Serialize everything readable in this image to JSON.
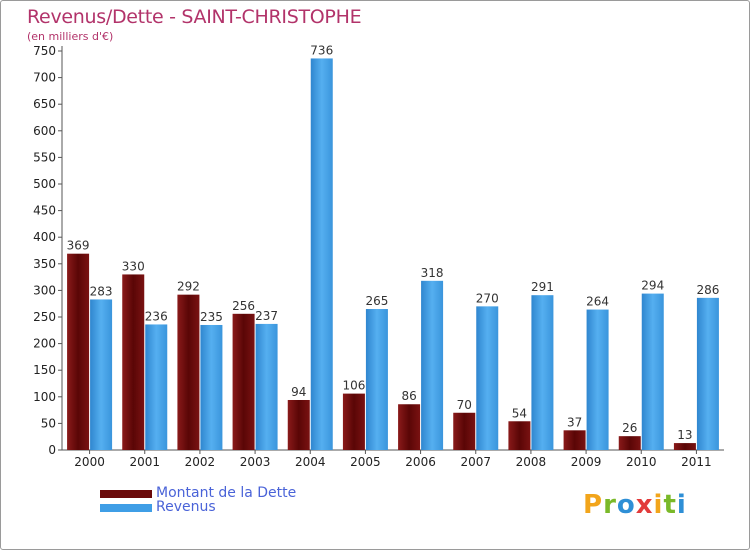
{
  "chart_data": {
    "type": "bar",
    "title": "Revenus/Dette - SAINT-CHRISTOPHE",
    "subtitle": "(en milliers d'€)",
    "categories": [
      "2000",
      "2001",
      "2002",
      "2003",
      "2004",
      "2005",
      "2006",
      "2007",
      "2008",
      "2009",
      "2010",
      "2011"
    ],
    "series": [
      {
        "name": "Montant de la Dette",
        "color": "#6b0a0a",
        "values": [
          369,
          330,
          292,
          256,
          94,
          106,
          86,
          70,
          54,
          37,
          26,
          13
        ]
      },
      {
        "name": "Revenus",
        "color": "#3f9ee6",
        "values": [
          283,
          236,
          235,
          237,
          736,
          265,
          318,
          270,
          291,
          264,
          294,
          286
        ]
      }
    ],
    "ylim": [
      0,
      750
    ],
    "yticks": [
      0,
      50,
      100,
      150,
      200,
      250,
      300,
      350,
      400,
      450,
      500,
      550,
      600,
      650,
      700,
      750
    ],
    "grid": false,
    "legend_position": "bottom-left"
  },
  "branding": {
    "logo_letters": [
      "P",
      "r",
      "o",
      "x",
      "i",
      "t",
      "i"
    ],
    "logo_colors": [
      "#f2a51b",
      "#7ab929",
      "#2e8fd6",
      "#e23b3b",
      "#f2a51b",
      "#7ab929",
      "#2e8fd6"
    ]
  }
}
